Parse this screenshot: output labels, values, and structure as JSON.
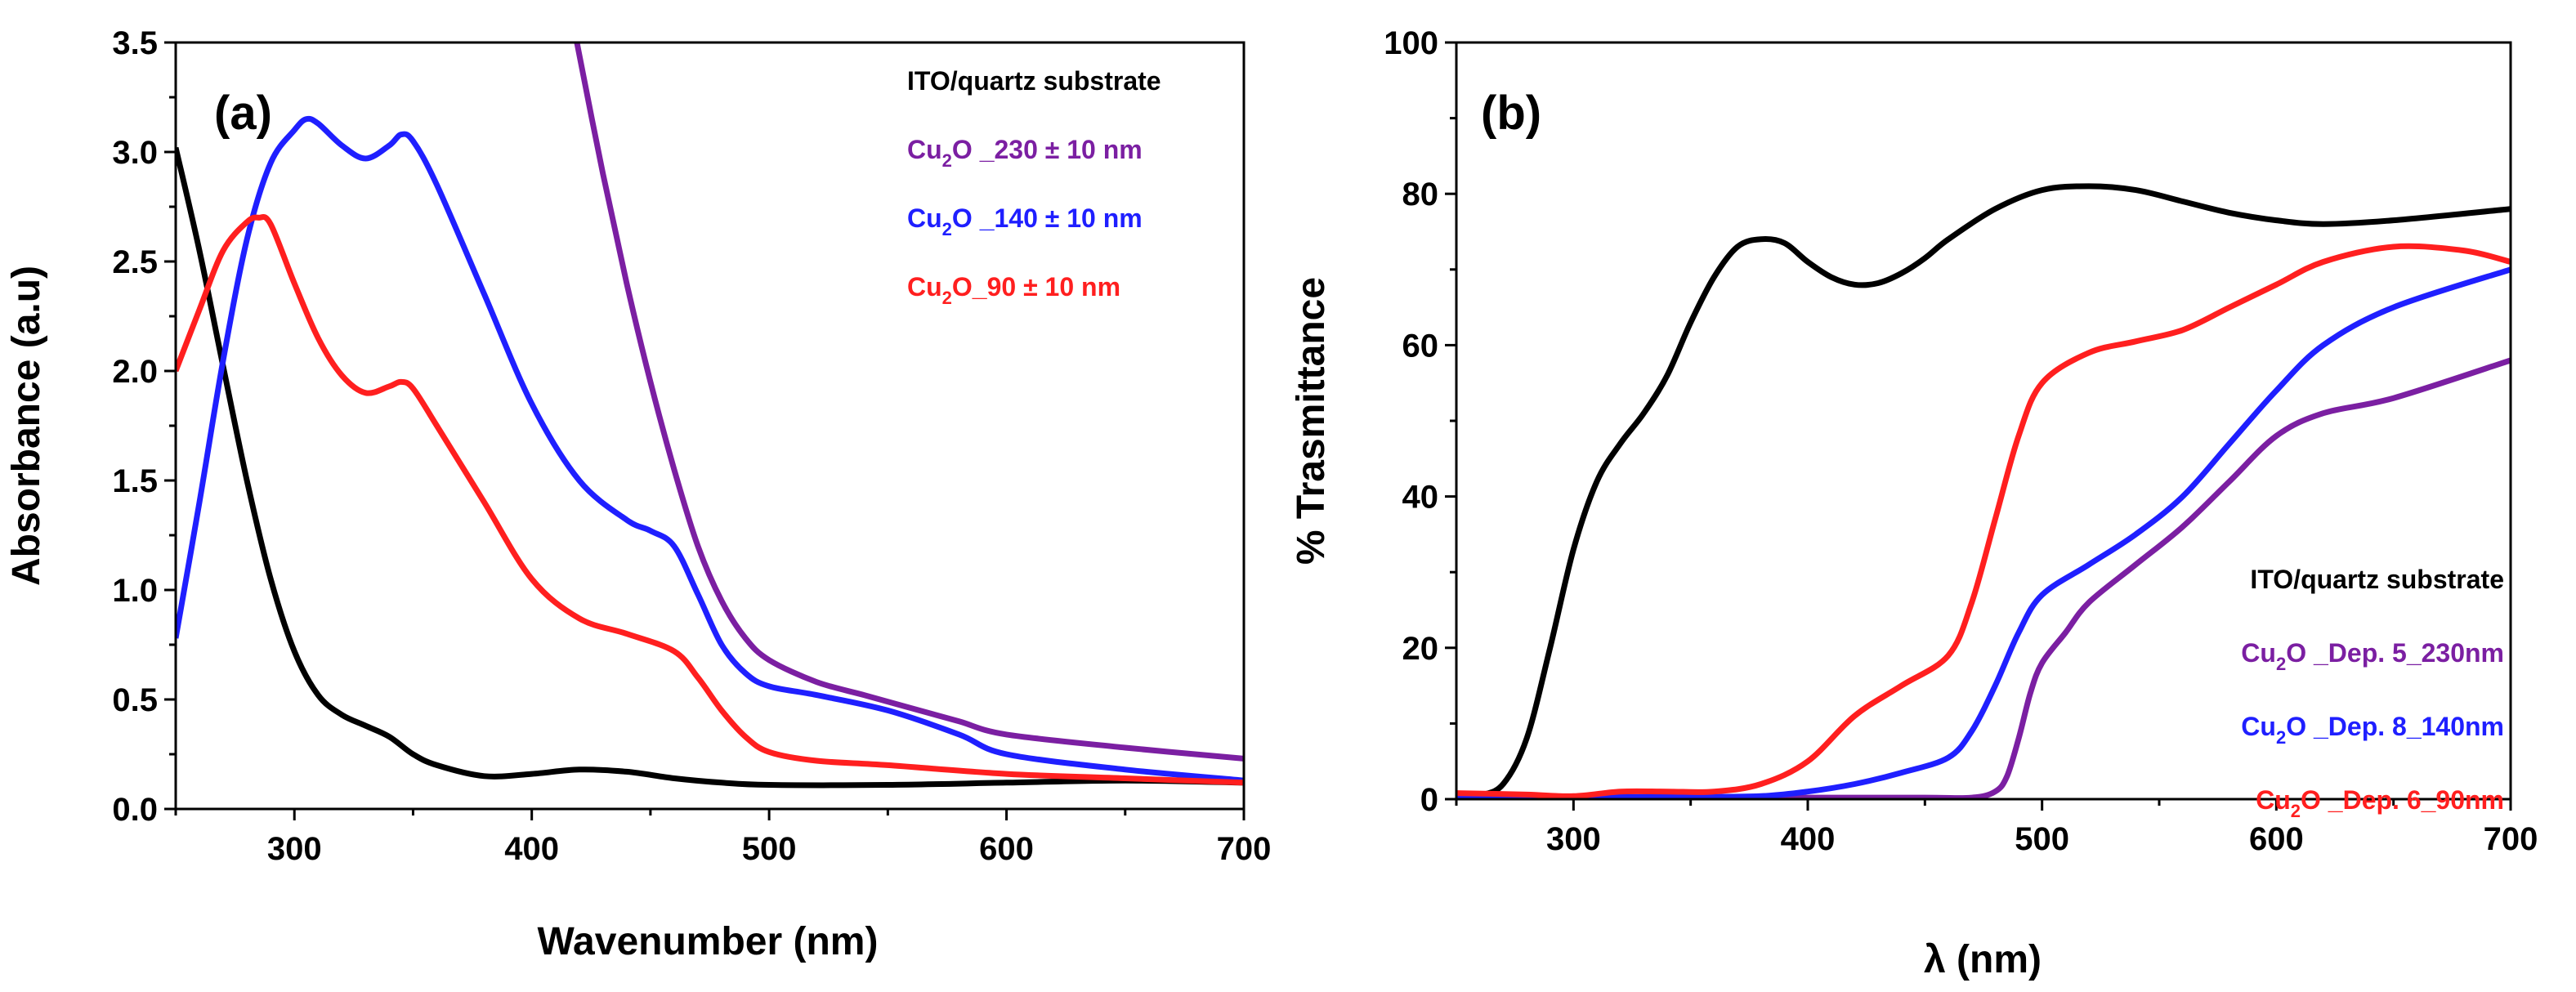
{
  "chart_data": [
    {
      "type": "line",
      "panel_label": "(a)",
      "xlabel": "Wavenumber (nm)",
      "ylabel": "Absorbance (a.u)",
      "xlim": [
        250,
        700
      ],
      "ylim": [
        0,
        3.5
      ],
      "xticks": [
        "300",
        "400",
        "500",
        "600",
        "700"
      ],
      "yticks": [
        "0.0",
        "0.5",
        "1.0",
        "1.5",
        "2.0",
        "2.5",
        "3.0",
        "3.5"
      ],
      "legend_title": "ITO/quartz substrate",
      "legend_position": "top-right",
      "series": [
        {
          "name": "ITO/quartz substrate",
          "color": "#000000",
          "x": [
            250,
            260,
            270,
            280,
            290,
            300,
            310,
            320,
            330,
            340,
            350,
            360,
            380,
            400,
            420,
            440,
            460,
            480,
            500,
            550,
            600,
            650,
            700
          ],
          "y": [
            3.02,
            2.55,
            2.02,
            1.5,
            1.05,
            0.72,
            0.52,
            0.43,
            0.38,
            0.33,
            0.25,
            0.2,
            0.15,
            0.16,
            0.18,
            0.17,
            0.14,
            0.12,
            0.11,
            0.11,
            0.12,
            0.13,
            0.12
          ]
        },
        {
          "name_parts": [
            "Cu",
            "2",
            "O _230 ± 10 nm"
          ],
          "color": "#7b1fa2",
          "x": [
            419,
            430,
            440,
            450,
            460,
            470,
            480,
            490,
            500,
            520,
            540,
            560,
            580,
            600,
            650,
            700
          ],
          "y": [
            3.5,
            2.9,
            2.4,
            1.95,
            1.55,
            1.2,
            0.95,
            0.78,
            0.68,
            0.58,
            0.52,
            0.46,
            0.4,
            0.34,
            0.28,
            0.23
          ]
        },
        {
          "name_parts": [
            "Cu",
            "2",
            "O _140 ± 10 nm"
          ],
          "color": "#1f1fff",
          "x": [
            250,
            260,
            270,
            280,
            290,
            300,
            305,
            310,
            320,
            330,
            340,
            345,
            350,
            360,
            380,
            400,
            420,
            440,
            450,
            460,
            470,
            480,
            490,
            500,
            520,
            550,
            580,
            600,
            650,
            700
          ],
          "y": [
            0.78,
            1.4,
            2.05,
            2.6,
            2.95,
            3.1,
            3.15,
            3.13,
            3.03,
            2.97,
            3.03,
            3.08,
            3.05,
            2.85,
            2.35,
            1.85,
            1.5,
            1.32,
            1.27,
            1.2,
            0.98,
            0.75,
            0.62,
            0.56,
            0.52,
            0.45,
            0.34,
            0.25,
            0.18,
            0.13
          ]
        },
        {
          "name_parts": [
            "Cu",
            "2",
            "O_90 ± 10 nm"
          ],
          "color": "#ff1f1f",
          "x": [
            250,
            260,
            270,
            280,
            285,
            290,
            300,
            310,
            320,
            330,
            340,
            345,
            350,
            360,
            380,
            400,
            420,
            440,
            460,
            470,
            480,
            490,
            500,
            520,
            550,
            600,
            650,
            700
          ],
          "y": [
            2.0,
            2.28,
            2.55,
            2.68,
            2.7,
            2.67,
            2.4,
            2.15,
            1.98,
            1.9,
            1.93,
            1.95,
            1.92,
            1.75,
            1.4,
            1.05,
            0.87,
            0.8,
            0.72,
            0.6,
            0.45,
            0.33,
            0.26,
            0.22,
            0.2,
            0.16,
            0.14,
            0.12
          ]
        }
      ]
    },
    {
      "type": "line",
      "panel_label": "(b)",
      "xlabel": "λ (nm)",
      "ylabel": "% Trasmittance",
      "xlim": [
        250,
        700
      ],
      "ylim": [
        0,
        100
      ],
      "xticks": [
        "300",
        "400",
        "500",
        "600",
        "700"
      ],
      "yticks": [
        "0",
        "20",
        "40",
        "60",
        "80",
        "100"
      ],
      "legend_title": "ITO/quartz substrate",
      "legend_position": "bottom-right",
      "series": [
        {
          "name": "ITO/quartz substrate",
          "color": "#000000",
          "x": [
            250,
            260,
            270,
            280,
            290,
            300,
            310,
            320,
            330,
            340,
            350,
            360,
            370,
            380,
            390,
            400,
            410,
            420,
            430,
            440,
            450,
            460,
            480,
            500,
            520,
            540,
            560,
            580,
            600,
            620,
            650,
            700
          ],
          "y": [
            0,
            0.5,
            2,
            8,
            20,
            33,
            42,
            47,
            51,
            56,
            63,
            69,
            73,
            74,
            73.5,
            71,
            69,
            68,
            68.2,
            69.5,
            71.5,
            74,
            78,
            80.5,
            81,
            80.5,
            79,
            77.5,
            76.5,
            76,
            76.5,
            78
          ]
        },
        {
          "name_parts": [
            "Cu",
            "2",
            "O _Dep. 5_230nm"
          ],
          "color": "#7b1fa2",
          "x": [
            250,
            300,
            350,
            400,
            450,
            470,
            480,
            485,
            490,
            495,
            500,
            510,
            520,
            540,
            560,
            580,
            600,
            620,
            650,
            700
          ],
          "y": [
            0.5,
            0.3,
            0.2,
            0.2,
            0.2,
            0.2,
            1,
            3,
            8,
            14,
            18,
            22,
            26,
            31,
            36,
            42,
            48,
            51,
            53,
            58
          ]
        },
        {
          "name_parts": [
            "Cu",
            "2",
            "O _Dep. 8_140nm"
          ],
          "color": "#1f1fff",
          "x": [
            250,
            300,
            350,
            380,
            400,
            420,
            440,
            460,
            470,
            480,
            490,
            500,
            520,
            540,
            560,
            580,
            600,
            620,
            650,
            700
          ],
          "y": [
            0.3,
            0.3,
            0.3,
            0.4,
            1,
            2,
            3.5,
            5.5,
            9,
            15,
            22,
            27,
            31,
            35,
            40,
            47,
            54,
            60,
            65,
            70
          ]
        },
        {
          "name_parts": [
            "Cu",
            "2",
            "O _Dep. 6_90nm"
          ],
          "color": "#ff1f1f",
          "x": [
            250,
            280,
            300,
            320,
            340,
            360,
            380,
            400,
            420,
            440,
            460,
            470,
            480,
            490,
            500,
            520,
            540,
            560,
            580,
            600,
            620,
            650,
            680,
            700
          ],
          "y": [
            0.8,
            0.6,
            0.4,
            1,
            1,
            1,
            2,
            5,
            11,
            15,
            19,
            26,
            37,
            48,
            55,
            59,
            60.5,
            62,
            65,
            68,
            71,
            73,
            72.5,
            71
          ]
        }
      ]
    }
  ]
}
